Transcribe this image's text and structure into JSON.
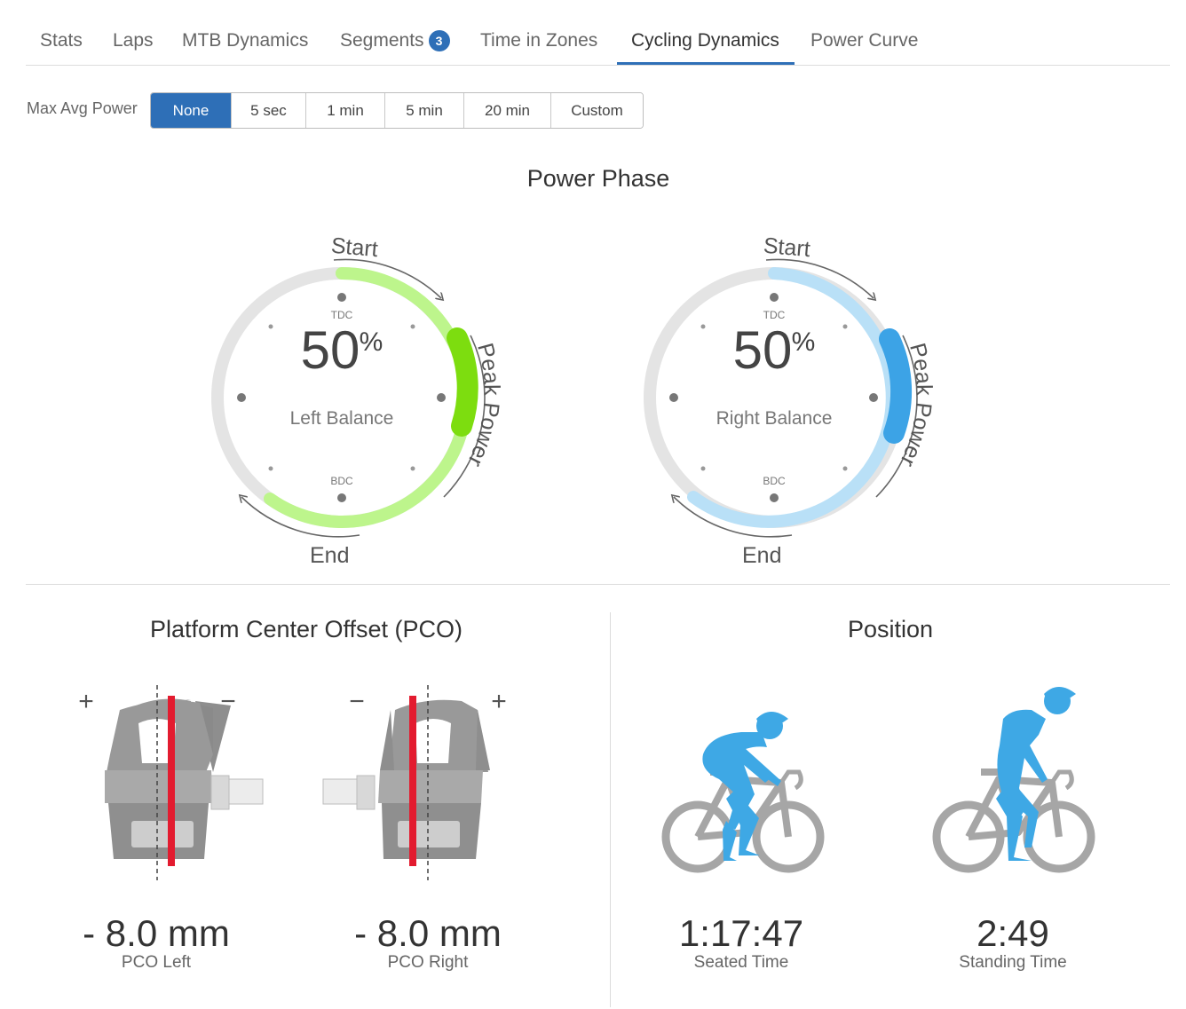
{
  "tabs": [
    {
      "label": "Stats"
    },
    {
      "label": "Laps"
    },
    {
      "label": "MTB Dynamics"
    },
    {
      "label": "Segments",
      "badge": "3"
    },
    {
      "label": "Time in Zones"
    },
    {
      "label": "Cycling Dynamics",
      "active": true
    },
    {
      "label": "Power Curve"
    }
  ],
  "max_avg_power": {
    "label": "Max Avg Power",
    "options": [
      "None",
      "5 sec",
      "1 min",
      "5 min",
      "20 min",
      "Custom"
    ],
    "selected": "None"
  },
  "power_phase": {
    "title": "Power Phase",
    "left": {
      "value": "50",
      "unit": "%",
      "label": "Left Balance",
      "tdc": "TDC",
      "bdc": "BDC",
      "start": "Start",
      "end": "End",
      "peak": "Peak Power",
      "arc_color": "#bdf58c",
      "peak_color": "#7ddd0f"
    },
    "right": {
      "value": "50",
      "unit": "%",
      "label": "Right Balance",
      "tdc": "TDC",
      "bdc": "BDC",
      "start": "Start",
      "end": "End",
      "peak": "Peak Power",
      "arc_color": "#b9e0f7",
      "peak_color": "#3ca3e6"
    }
  },
  "pco": {
    "title": "Platform Center Offset (PCO)",
    "left": {
      "value": "- 8.0 mm",
      "label": "PCO Left",
      "plus": "+",
      "minus": "−"
    },
    "right": {
      "value": "- 8.0 mm",
      "label": "PCO Right",
      "plus": "+",
      "minus": "−"
    }
  },
  "position": {
    "title": "Position",
    "seated": {
      "value": "1:17:47",
      "label": "Seated Time"
    },
    "standing": {
      "value": "2:49",
      "label": "Standing Time"
    }
  },
  "colors": {
    "accent": "#2e6fb7",
    "rider": "#3ea8e5",
    "bike": "#a6a6a6",
    "pco_line": "#e31b2f",
    "pedal": "#8c8c8c"
  }
}
